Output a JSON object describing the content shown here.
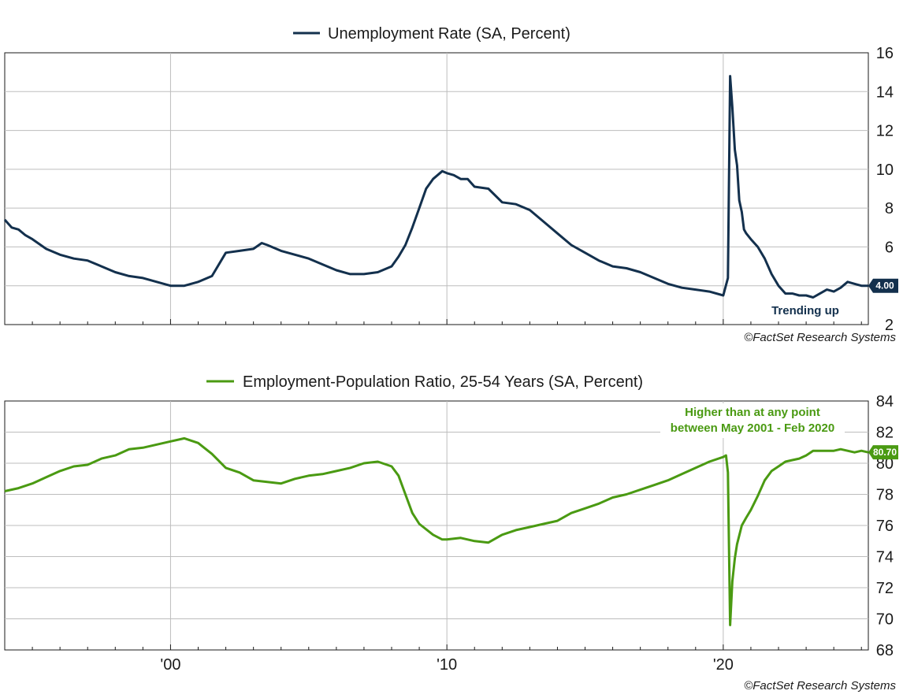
{
  "colors": {
    "unemployment": "#13304d",
    "epop": "#4a9a12",
    "grid": "#bdbdbd",
    "frame": "#1a1a1a"
  },
  "chart_data": [
    {
      "type": "line",
      "title": "Unemployment Rate (SA, Percent)",
      "ylim": [
        2,
        16
      ],
      "y_ticks": [
        2,
        4,
        6,
        8,
        10,
        12,
        14,
        16
      ],
      "x_range": [
        1994.0,
        2025.25
      ],
      "x_ticks": [
        {
          "x": 2000,
          "label": "'00"
        },
        {
          "x": 2010,
          "label": "'10"
        },
        {
          "x": 2020,
          "label": "'20"
        }
      ],
      "grid": "horizontal and decade vertical",
      "last_value_badge": "4.00",
      "annotation": "Trending up",
      "source": "©FactSet Research Systems",
      "series": [
        {
          "x": [
            1994.0,
            1994.25,
            1994.5,
            1994.75,
            1995.0,
            1995.5,
            1996.0,
            1996.5,
            1997.0,
            1997.5,
            1998.0,
            1998.5,
            1999.0,
            1999.5,
            2000.0,
            2000.5,
            2001.0,
            2001.5,
            2002.0,
            2002.5,
            2003.0,
            2003.3,
            2003.5,
            2004.0,
            2004.5,
            2005.0,
            2005.5,
            2006.0,
            2006.5,
            2007.0,
            2007.5,
            2008.0,
            2008.25,
            2008.5,
            2008.75,
            2009.0,
            2009.25,
            2009.5,
            2009.83,
            2010.0,
            2010.25,
            2010.5,
            2010.75,
            2011.0,
            2011.5,
            2012.0,
            2012.5,
            2013.0,
            2013.5,
            2014.0,
            2014.5,
            2015.0,
            2015.5,
            2016.0,
            2016.5,
            2017.0,
            2017.5,
            2018.0,
            2018.5,
            2019.0,
            2019.5,
            2020.0,
            2020.17,
            2020.25,
            2020.33,
            2020.42,
            2020.5,
            2020.58,
            2020.67,
            2020.75,
            2020.83,
            2021.0,
            2021.25,
            2021.5,
            2021.75,
            2022.0,
            2022.25,
            2022.5,
            2022.75,
            2023.0,
            2023.25,
            2023.5,
            2023.75,
            2024.0,
            2024.25,
            2024.5,
            2024.75,
            2025.0,
            2025.25
          ],
          "y": [
            7.4,
            7.0,
            6.9,
            6.6,
            6.4,
            5.9,
            5.6,
            5.4,
            5.3,
            5.0,
            4.7,
            4.5,
            4.4,
            4.2,
            4.0,
            4.0,
            4.2,
            4.5,
            5.7,
            5.8,
            5.9,
            6.2,
            6.1,
            5.8,
            5.6,
            5.4,
            5.1,
            4.8,
            4.6,
            4.6,
            4.7,
            5.0,
            5.5,
            6.1,
            7.0,
            8.0,
            9.0,
            9.5,
            9.9,
            9.8,
            9.7,
            9.5,
            9.5,
            9.1,
            9.0,
            8.3,
            8.2,
            7.9,
            7.3,
            6.7,
            6.1,
            5.7,
            5.3,
            5.0,
            4.9,
            4.7,
            4.4,
            4.1,
            3.9,
            3.8,
            3.7,
            3.5,
            4.4,
            14.8,
            13.2,
            11.0,
            10.2,
            8.4,
            7.8,
            6.9,
            6.7,
            6.4,
            6.0,
            5.4,
            4.6,
            4.0,
            3.6,
            3.6,
            3.5,
            3.5,
            3.4,
            3.6,
            3.8,
            3.7,
            3.9,
            4.2,
            4.1,
            4.0,
            4.0
          ]
        }
      ]
    },
    {
      "type": "line",
      "title": "Employment-Population Ratio, 25-54 Years (SA, Percent)",
      "ylim": [
        68,
        84
      ],
      "y_ticks": [
        68,
        70,
        72,
        74,
        76,
        78,
        80,
        82,
        84
      ],
      "x_range": [
        1994.0,
        2025.25
      ],
      "x_ticks": [
        {
          "x": 2000,
          "label": "'00"
        },
        {
          "x": 2010,
          "label": "'10"
        },
        {
          "x": 2020,
          "label": "'20"
        }
      ],
      "grid": "horizontal and decade vertical",
      "last_value_badge": "80.70",
      "annotation_lines": [
        "Higher than at any point",
        "between May 2001 - Feb 2020"
      ],
      "source": "©FactSet Research Systems",
      "series": [
        {
          "x": [
            1994.0,
            1994.5,
            1995.0,
            1995.5,
            1996.0,
            1996.5,
            1997.0,
            1997.5,
            1998.0,
            1998.5,
            1999.0,
            1999.5,
            2000.0,
            2000.5,
            2001.0,
            2001.5,
            2002.0,
            2002.5,
            2003.0,
            2003.5,
            2004.0,
            2004.5,
            2005.0,
            2005.5,
            2006.0,
            2006.5,
            2007.0,
            2007.5,
            2008.0,
            2008.25,
            2008.5,
            2008.75,
            2009.0,
            2009.5,
            2009.83,
            2010.0,
            2010.5,
            2011.0,
            2011.5,
            2012.0,
            2012.5,
            2013.0,
            2013.5,
            2014.0,
            2014.5,
            2015.0,
            2015.5,
            2016.0,
            2016.5,
            2017.0,
            2017.5,
            2018.0,
            2018.5,
            2019.0,
            2019.5,
            2020.0,
            2020.1,
            2020.17,
            2020.25,
            2020.33,
            2020.42,
            2020.5,
            2020.67,
            2020.83,
            2021.0,
            2021.25,
            2021.5,
            2021.75,
            2022.0,
            2022.25,
            2022.5,
            2022.75,
            2023.0,
            2023.25,
            2023.5,
            2023.75,
            2024.0,
            2024.25,
            2024.5,
            2024.75,
            2025.0,
            2025.25
          ],
          "y": [
            78.2,
            78.4,
            78.7,
            79.1,
            79.5,
            79.8,
            79.9,
            80.3,
            80.5,
            80.9,
            81.0,
            81.2,
            81.4,
            81.6,
            81.3,
            80.6,
            79.7,
            79.4,
            78.9,
            78.8,
            78.7,
            79.0,
            79.2,
            79.3,
            79.5,
            79.7,
            80.0,
            80.1,
            79.8,
            79.2,
            78.0,
            76.8,
            76.1,
            75.4,
            75.1,
            75.1,
            75.2,
            75.0,
            74.9,
            75.4,
            75.7,
            75.9,
            76.1,
            76.3,
            76.8,
            77.1,
            77.4,
            77.8,
            78.0,
            78.3,
            78.6,
            78.9,
            79.3,
            79.7,
            80.1,
            80.4,
            80.5,
            79.4,
            69.6,
            72.4,
            73.9,
            74.8,
            76.0,
            76.5,
            77.0,
            77.9,
            78.9,
            79.5,
            79.8,
            80.1,
            80.2,
            80.3,
            80.5,
            80.8,
            80.8,
            80.8,
            80.8,
            80.9,
            80.8,
            80.7,
            80.8,
            80.7
          ]
        }
      ]
    }
  ]
}
